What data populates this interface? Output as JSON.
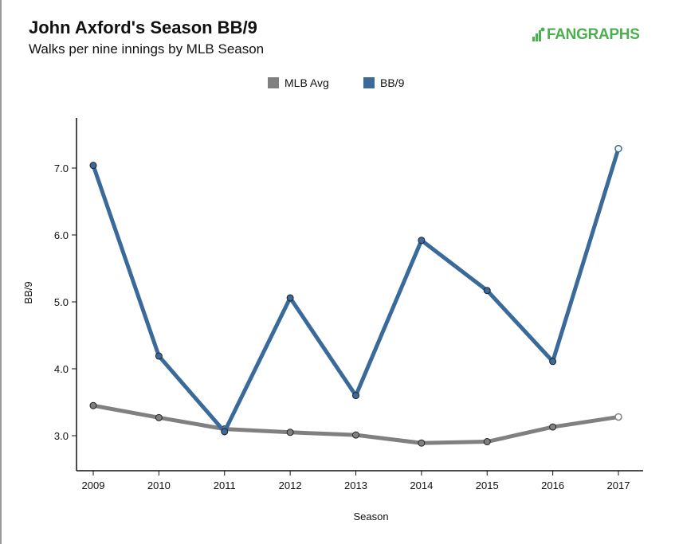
{
  "header": {
    "title": "John Axford's Season BB/9",
    "subtitle": "Walks per nine innings by MLB Season",
    "logo_text": "FANGRAPHS"
  },
  "colors": {
    "mlb_avg": "#808080",
    "bb9": "#3a6a9a",
    "logo": "#4caf50"
  },
  "chart_data": {
    "type": "line",
    "xlabel": "Season",
    "ylabel": "BB/9",
    "categories": [
      "2009",
      "2010",
      "2011",
      "2012",
      "2013",
      "2014",
      "2015",
      "2016",
      "2017"
    ],
    "ylim": [
      2.5,
      7.75
    ],
    "yticks": [
      "3.0",
      "4.0",
      "5.0",
      "6.0",
      "7.0"
    ],
    "grid": false,
    "legend_position": "top-center",
    "series": [
      {
        "name": "MLB Avg",
        "values": [
          3.45,
          3.27,
          3.1,
          3.05,
          3.01,
          2.89,
          2.91,
          3.13,
          3.28
        ]
      },
      {
        "name": "BB/9",
        "values": [
          7.04,
          4.19,
          3.06,
          5.06,
          3.6,
          5.92,
          5.17,
          4.11,
          7.29
        ]
      }
    ]
  }
}
